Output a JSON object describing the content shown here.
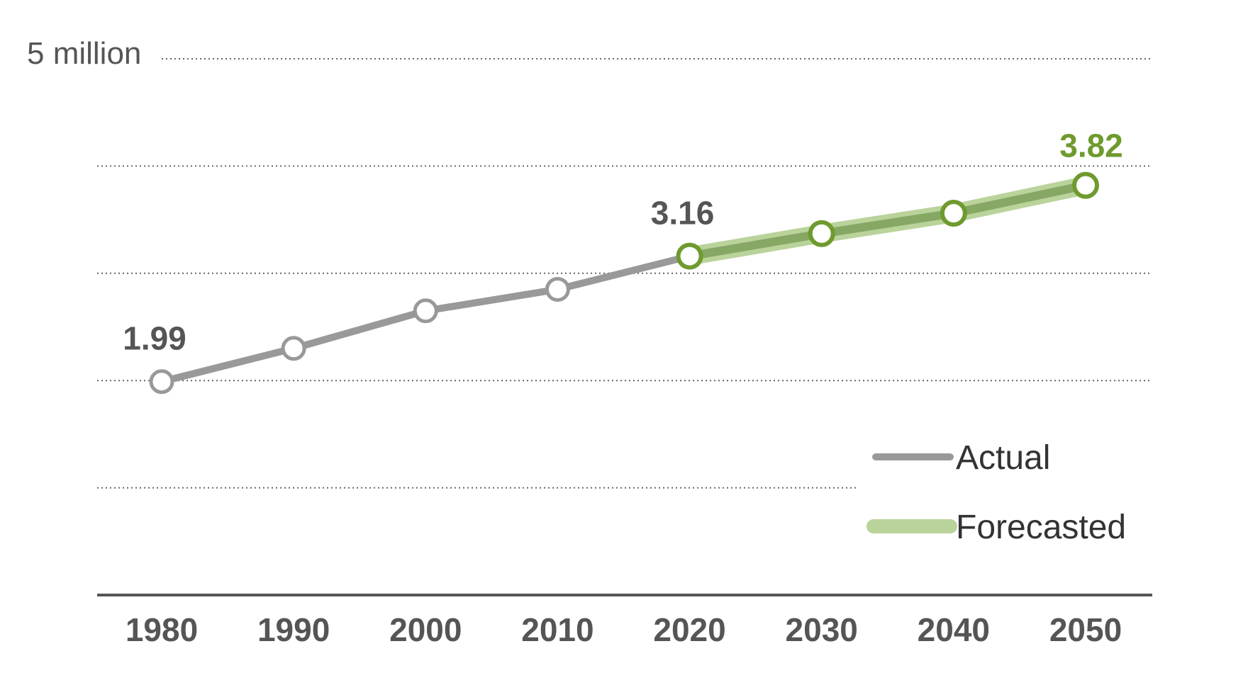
{
  "chart_data": {
    "type": "line",
    "title": "",
    "xlabel": "",
    "ylabel": "",
    "ylim": [
      0,
      5
    ],
    "y_top_label": "5 million",
    "x": [
      1980,
      1990,
      2000,
      2010,
      2020,
      2030,
      2040,
      2050
    ],
    "x_tick_labels": [
      "1980",
      "1990",
      "2000",
      "2010",
      "2020",
      "2030",
      "2040",
      "2050"
    ],
    "series": [
      {
        "name": "Actual",
        "color": "#999999",
        "x": [
          1980,
          1990,
          2000,
          2010,
          2020
        ],
        "values": [
          1.99,
          2.3,
          2.65,
          2.85,
          3.16
        ]
      },
      {
        "name": "Forecasted",
        "color": "#86a864",
        "halo_color": "#b9d39b",
        "marker_color": "#6f9a2e",
        "x": [
          2020,
          2030,
          2040,
          2050
        ],
        "values": [
          3.16,
          3.37,
          3.56,
          3.82
        ]
      }
    ],
    "data_labels": [
      {
        "x": 1980,
        "y": 1.99,
        "text": "1.99",
        "color": "#555555"
      },
      {
        "x": 2020,
        "y": 3.16,
        "text": "3.16",
        "color": "#555555"
      },
      {
        "x": 2050,
        "y": 3.82,
        "text": "3.82",
        "color": "#6f9a2e"
      }
    ],
    "gridlines": [
      1,
      2,
      3,
      4,
      5
    ],
    "grid": true,
    "legend_position": "bottom-right"
  }
}
